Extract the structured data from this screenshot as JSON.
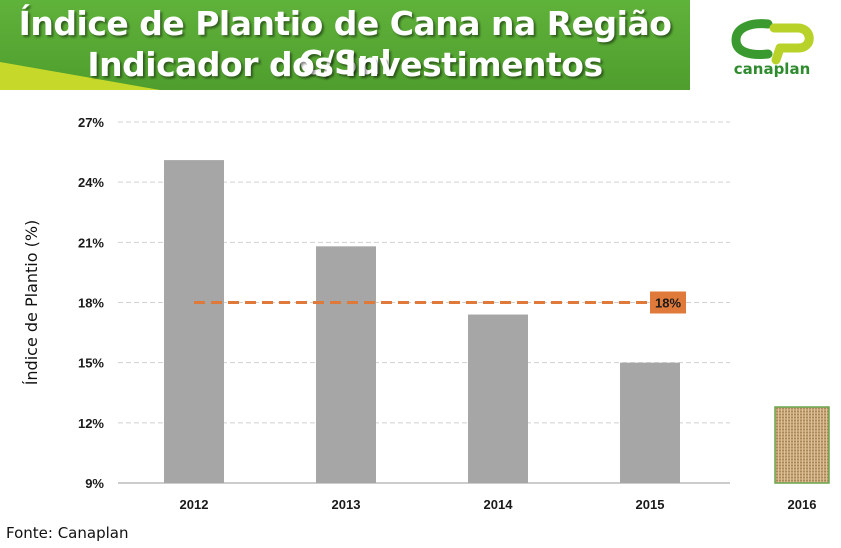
{
  "header": {
    "title_line1": "Índice de Plantio de Cana na Região C/Sul",
    "title_line2": "Indicador dos Investimentos",
    "background_color": "#55a833"
  },
  "logo": {
    "text": "canaplan",
    "icon": "canaplan-logo-icon",
    "color": "#2e8b2e"
  },
  "footer": {
    "source": "Fonte: Canaplan"
  },
  "chart_data": {
    "type": "bar",
    "categories": [
      "2012",
      "2013",
      "2014",
      "2015",
      "2016"
    ],
    "values": [
      25.1,
      20.8,
      17.4,
      15.0,
      null
    ],
    "ylabel": "Índice de Plantio (%)",
    "ylim": [
      9,
      27
    ],
    "yticks": [
      9,
      12,
      15,
      18,
      21,
      24,
      27
    ],
    "ytick_labels": [
      "9%",
      "12%",
      "15%",
      "18%",
      "21%",
      "24%",
      "27%"
    ],
    "bar_color": "#a6a6a6",
    "grid": true,
    "reference_line": {
      "value": 18,
      "label": "18%",
      "color": "#e07a3a",
      "style": "dashed"
    },
    "placeholder_2016": {
      "icon": "burlap-texture-icon"
    }
  }
}
